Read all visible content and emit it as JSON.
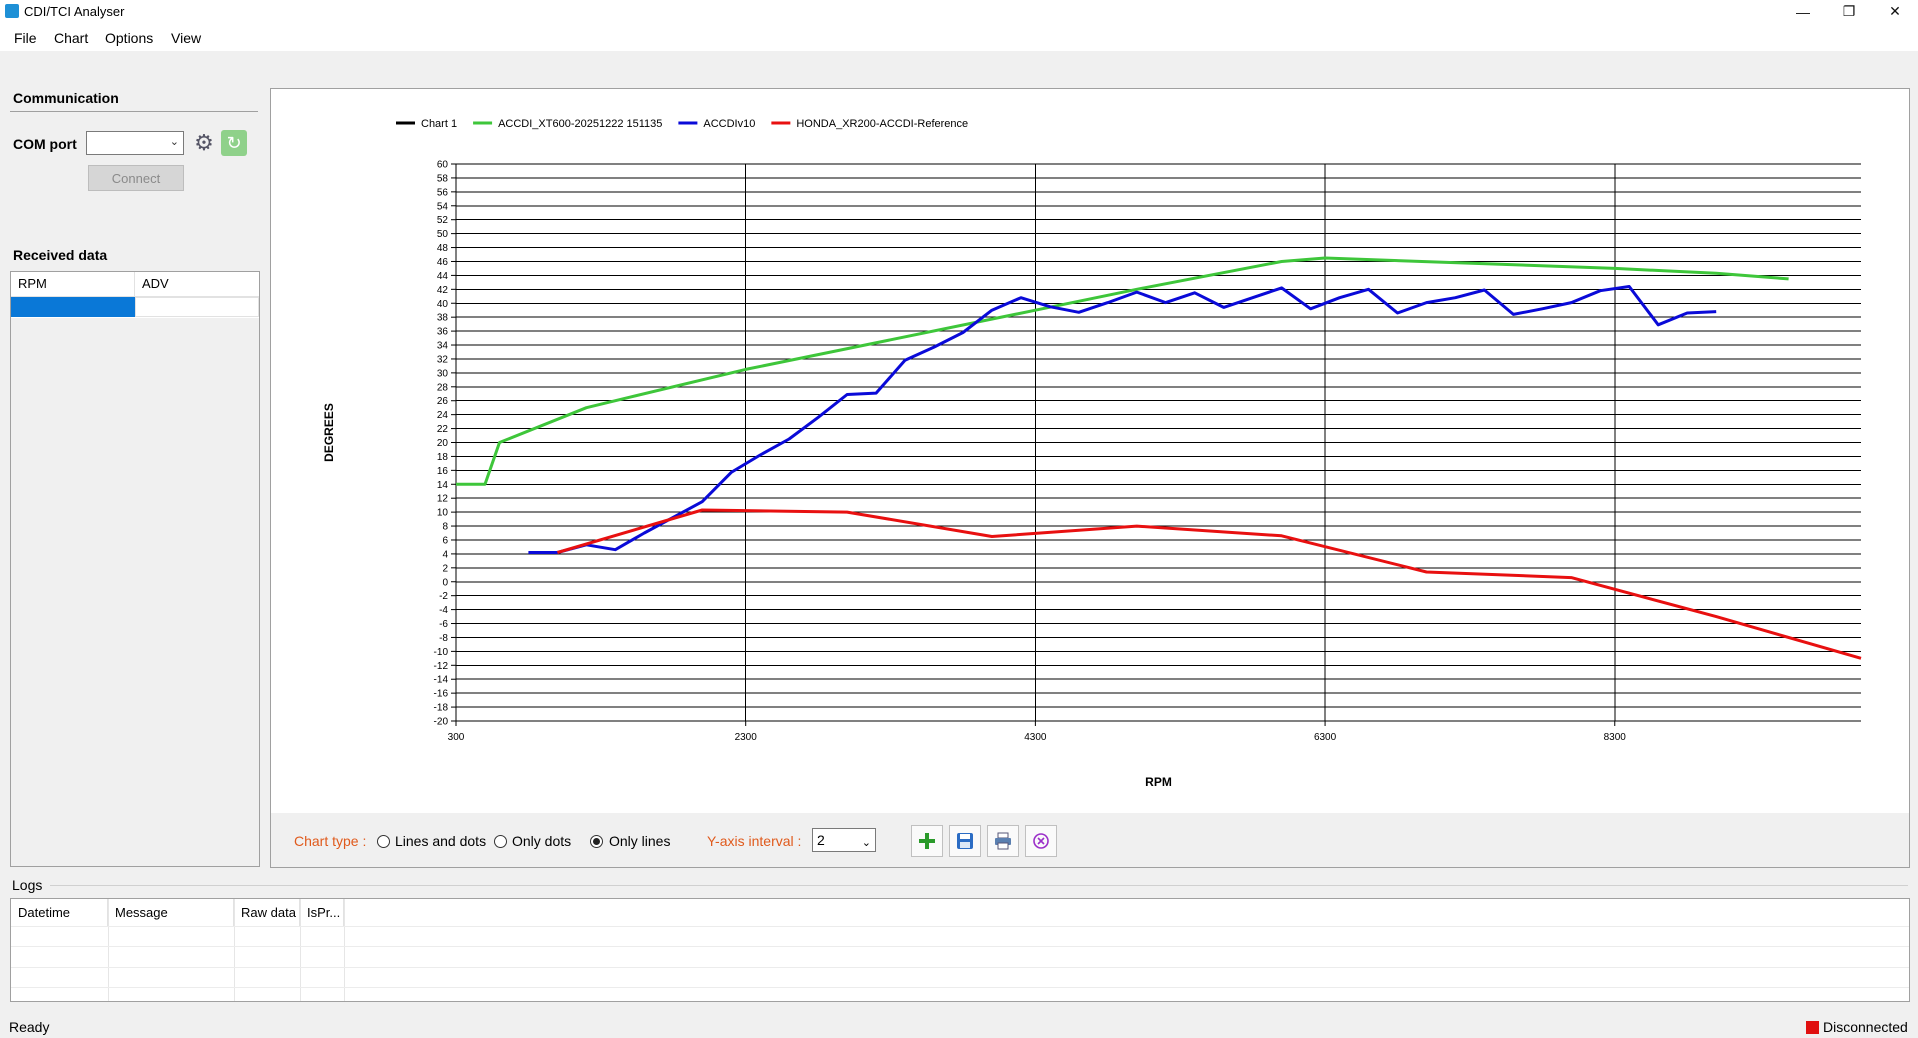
{
  "window": {
    "title": "CDI/TCI Analyser"
  },
  "menu": {
    "items": [
      "File",
      "Chart",
      "Options",
      "View"
    ]
  },
  "communication": {
    "title": "Communication",
    "com_port_label": "COM port",
    "com_port_value": "",
    "connect_label": "Connect"
  },
  "received": {
    "title": "Received data",
    "columns": [
      "RPM",
      "ADV"
    ]
  },
  "toolbar": {
    "chart_type_label": "Chart type :",
    "options": [
      "Lines and dots",
      "Only dots",
      "Only lines"
    ],
    "selected_option": "Only lines",
    "y_interval_label": "Y-axis interval :",
    "y_interval_value": "2"
  },
  "logs": {
    "title": "Logs",
    "columns": [
      "Datetime",
      "Message",
      "Raw data",
      "IsPr..."
    ]
  },
  "status": {
    "left": "Ready",
    "right": "Disconnected",
    "indicator_color": "#e01010"
  },
  "chart_data": {
    "type": "line",
    "xlabel": "RPM",
    "ylabel": "DEGREES",
    "xlim": [
      300,
      10000
    ],
    "ylim": [
      -20,
      60
    ],
    "x_ticks": [
      300,
      2300,
      4300,
      6300,
      8300
    ],
    "y_tick_step": 2,
    "grid": true,
    "legend_position": "top-left",
    "series": [
      {
        "name": "Chart 1",
        "color": "#000000",
        "points": []
      },
      {
        "name": "ACCDI_XT600-20251222 151135",
        "color": "#3ec63a",
        "points": [
          [
            300,
            14
          ],
          [
            500,
            14
          ],
          [
            600,
            20
          ],
          [
            1200,
            25
          ],
          [
            1500,
            26.5
          ],
          [
            2300,
            30.5
          ],
          [
            4300,
            39
          ],
          [
            5000,
            42
          ],
          [
            6000,
            46
          ],
          [
            6300,
            46.5
          ],
          [
            8300,
            45
          ],
          [
            9000,
            44.3
          ],
          [
            9500,
            43.5
          ]
        ]
      },
      {
        "name": "ACCDIv10",
        "color": "#0a0ad8",
        "points": [
          [
            800,
            4.2
          ],
          [
            1000,
            4.2
          ],
          [
            1200,
            5.3
          ],
          [
            1400,
            4.6
          ],
          [
            1600,
            7
          ],
          [
            2000,
            11.5
          ],
          [
            2200,
            15.7
          ],
          [
            2400,
            18.2
          ],
          [
            2600,
            20.5
          ],
          [
            2800,
            23.6
          ],
          [
            3000,
            26.9
          ],
          [
            3200,
            27.1
          ],
          [
            3400,
            31.8
          ],
          [
            3600,
            33.7
          ],
          [
            3800,
            35.8
          ],
          [
            4000,
            39
          ],
          [
            4200,
            40.8
          ],
          [
            4400,
            39.5
          ],
          [
            4600,
            38.7
          ],
          [
            4800,
            40.1
          ],
          [
            5000,
            41.6
          ],
          [
            5200,
            40.1
          ],
          [
            5400,
            41.5
          ],
          [
            5600,
            39.4
          ],
          [
            5800,
            40.8
          ],
          [
            6000,
            42.2
          ],
          [
            6200,
            39.2
          ],
          [
            6400,
            40.8
          ],
          [
            6600,
            42
          ],
          [
            6800,
            38.6
          ],
          [
            7000,
            40.1
          ],
          [
            7200,
            40.8
          ],
          [
            7400,
            41.9
          ],
          [
            7600,
            38.4
          ],
          [
            7800,
            39.2
          ],
          [
            8000,
            40.1
          ],
          [
            8200,
            41.8
          ],
          [
            8400,
            42.4
          ],
          [
            8600,
            36.9
          ],
          [
            8800,
            38.6
          ],
          [
            9000,
            38.8
          ]
        ]
      },
      {
        "name": "HONDA_XR200-ACCDI-Reference",
        "color": "#e81010",
        "points": [
          [
            1000,
            4.2
          ],
          [
            2000,
            10.3
          ],
          [
            3000,
            10
          ],
          [
            4000,
            6.5
          ],
          [
            5000,
            8
          ],
          [
            6000,
            6.6
          ],
          [
            7000,
            1.4
          ],
          [
            8000,
            0.6
          ],
          [
            9000,
            -5
          ],
          [
            10000,
            -11
          ]
        ]
      }
    ]
  }
}
